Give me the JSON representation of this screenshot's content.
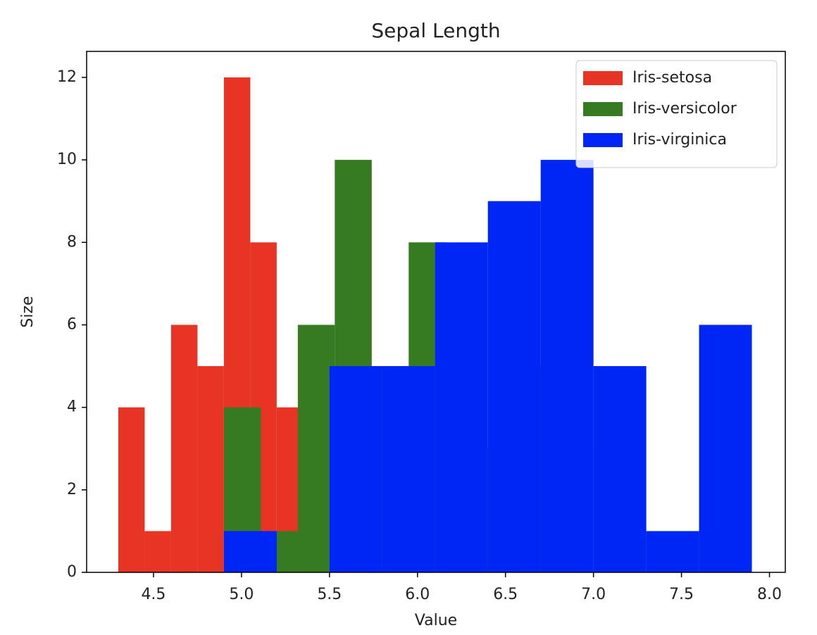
{
  "chart_data": {
    "type": "histogram",
    "title": "Sepal Length",
    "x_label": "Value",
    "y_label": "Size",
    "series": [
      {
        "name": "Iris-setosa",
        "color": "#e83424",
        "bins": [
          4.3,
          4.45,
          4.6,
          4.75,
          4.9,
          5.05,
          5.2,
          5.35,
          5.5,
          5.65,
          5.8
        ],
        "values": [
          4,
          1,
          6,
          5,
          12,
          8,
          4,
          5,
          2,
          3
        ]
      },
      {
        "name": "Iris-versicolor",
        "color": "#367b22",
        "bins": [
          4.9,
          5.11,
          5.32,
          5.53,
          5.74,
          5.95,
          6.16,
          6.37,
          6.58,
          6.79,
          7.0
        ],
        "values": [
          4,
          1,
          6,
          10,
          5,
          8,
          5,
          3,
          5,
          3
        ]
      },
      {
        "name": "Iris-virginica",
        "color": "#0026f5",
        "bins": [
          4.9,
          5.2,
          5.5,
          5.8,
          6.1,
          6.4,
          6.7,
          7.0,
          7.3,
          7.6,
          7.9
        ],
        "values": [
          1,
          0,
          5,
          5,
          8,
          9,
          10,
          5,
          1,
          6
        ]
      }
    ],
    "xlim": [
      4.12,
      8.09
    ],
    "ylim": [
      0,
      12.63
    ],
    "xticks": [
      4.5,
      {
        "value": 5,
        "label": "5.0"
      },
      5.5,
      {
        "value": 6,
        "label": "6.0"
      },
      6.5,
      {
        "value": 7,
        "label": "7.0"
      },
      7.5,
      {
        "value": 8,
        "label": "8.0"
      }
    ],
    "yticks": [
      0,
      2,
      4,
      6,
      8,
      10,
      12
    ],
    "legend": "upper right"
  }
}
